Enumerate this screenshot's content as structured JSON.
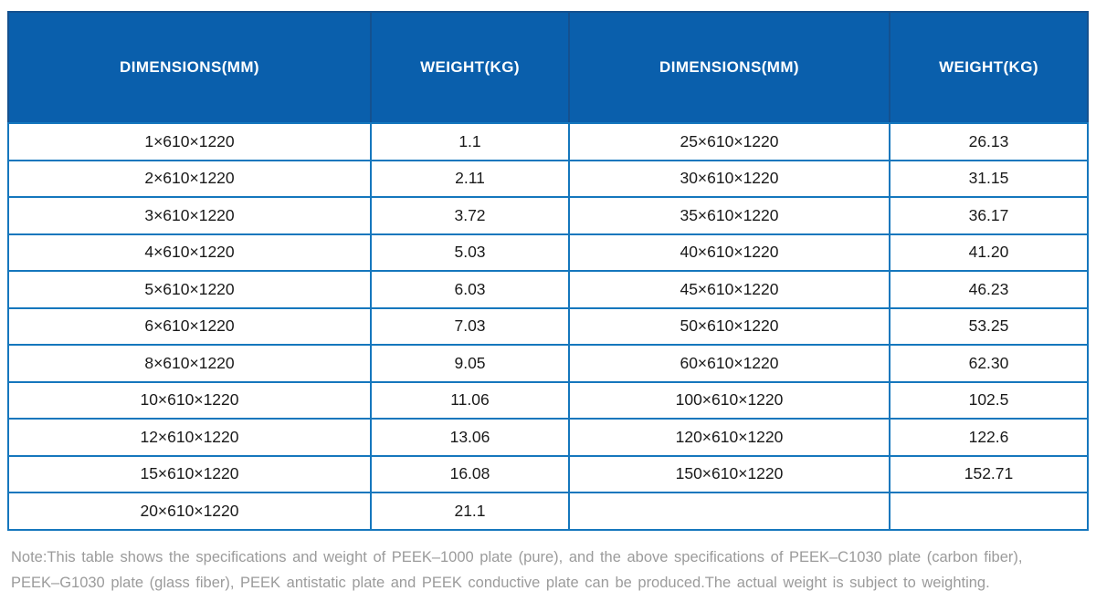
{
  "table": {
    "headers": [
      "DIMENSIONS(MM)",
      "WEIGHT(KG)",
      "DIMENSIONS(MM)",
      "WEIGHT(KG)"
    ],
    "rows": [
      [
        "1×610×1220",
        "1.1",
        "25×610×1220",
        "26.13"
      ],
      [
        "2×610×1220",
        "2.11",
        "30×610×1220",
        "31.15"
      ],
      [
        "3×610×1220",
        "3.72",
        "35×610×1220",
        "36.17"
      ],
      [
        "4×610×1220",
        "5.03",
        "40×610×1220",
        "41.20"
      ],
      [
        "5×610×1220",
        "6.03",
        "45×610×1220",
        "46.23"
      ],
      [
        "6×610×1220",
        "7.03",
        "50×610×1220",
        "53.25"
      ],
      [
        "8×610×1220",
        "9.05",
        "60×610×1220",
        "62.30"
      ],
      [
        "10×610×1220",
        "11.06",
        "100×610×1220",
        "102.5"
      ],
      [
        "12×610×1220",
        "13.06",
        "120×610×1220",
        "122.6"
      ],
      [
        "15×610×1220",
        "16.08",
        "150×610×1220",
        "152.71"
      ],
      [
        "20×610×1220",
        "21.1",
        "",
        ""
      ]
    ],
    "colors": {
      "header_bg": "#0a5fac",
      "header_text": "#ffffff",
      "header_divider": "#14518f",
      "grid_border": "#1577bd",
      "cell_text": "#1a1a1a",
      "note_text": "#9b9b9b"
    }
  },
  "note": {
    "line1": "Note:This table shows the specifications and weight of PEEK–1000 plate (pure), and the above specifications of PEEK–C1030 plate (carbon fiber),",
    "line2": "PEEK–G1030 plate (glass fiber), PEEK antistatic plate and PEEK conductive plate can be produced.The actual weight is subject to weighting."
  },
  "chart_data": {
    "type": "table",
    "columns": [
      "DIMENSIONS(MM)",
      "WEIGHT(KG)",
      "DIMENSIONS(MM)",
      "WEIGHT(KG)"
    ],
    "rows": [
      [
        "1×610×1220",
        "1.1",
        "25×610×1220",
        "26.13"
      ],
      [
        "2×610×1220",
        "2.11",
        "30×610×1220",
        "31.15"
      ],
      [
        "3×610×1220",
        "3.72",
        "35×610×1220",
        "36.17"
      ],
      [
        "4×610×1220",
        "5.03",
        "40×610×1220",
        "41.20"
      ],
      [
        "5×610×1220",
        "6.03",
        "45×610×1220",
        "46.23"
      ],
      [
        "6×610×1220",
        "7.03",
        "50×610×1220",
        "53.25"
      ],
      [
        "8×610×1220",
        "9.05",
        "60×610×1220",
        "62.30"
      ],
      [
        "10×610×1220",
        "11.06",
        "100×610×1220",
        "102.5"
      ],
      [
        "12×610×1220",
        "13.06",
        "120×610×1220",
        "122.6"
      ],
      [
        "15×610×1220",
        "16.08",
        "150×610×1220",
        "152.71"
      ],
      [
        "20×610×1220",
        "21.1",
        "",
        ""
      ]
    ]
  }
}
